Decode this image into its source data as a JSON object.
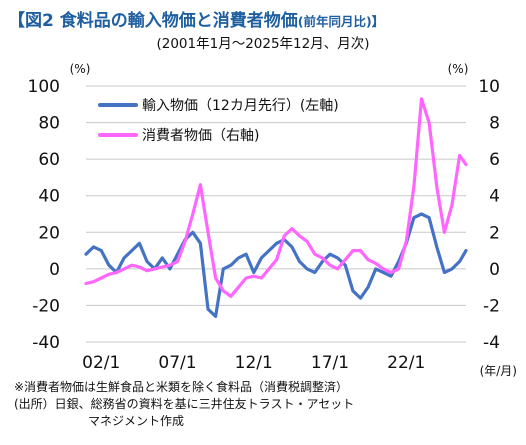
{
  "header": {
    "title_main": "【図2 食料品の輸入物価と消費者物価",
    "title_tail": "(前年同月比)】",
    "subtitle": "(2001年1月～2025年12月、月次)"
  },
  "notes": {
    "note1": "※消費者物価は生鮮食品と米類を除く食料品（消費税調整済）",
    "source1": "(出所）日銀、総務省の資料を基に三井住友トラスト・アセット",
    "source2": "マネジメント作成"
  },
  "colors": {
    "import": "#4472c4",
    "cpi": "#ff66ff",
    "grid": "#c8c8c8",
    "text": "#111111",
    "title": "#1f5fa0"
  },
  "chart_data": {
    "type": "line",
    "left_unit": "(%)",
    "right_unit": "(%)",
    "x_unit": "(年/月)",
    "left_axis": {
      "min": -40,
      "max": 100,
      "step": 20,
      "ticks": [
        "100",
        "80",
        "60",
        "40",
        "20",
        "0",
        "-20",
        "-40"
      ]
    },
    "right_axis": {
      "min": -4,
      "max": 10,
      "step": 2,
      "ticks": [
        "10",
        "8",
        "6",
        "4",
        "2",
        "0",
        "-2",
        "-4"
      ]
    },
    "x_ticks": [
      {
        "label": "02/1",
        "t": 2002.0
      },
      {
        "label": "07/1",
        "t": 2007.0
      },
      {
        "label": "12/1",
        "t": 2012.0
      },
      {
        "label": "17/1",
        "t": 2017.0
      },
      {
        "label": "22/1",
        "t": 2022.0
      }
    ],
    "x_range": [
      "2001-01",
      "2025-12"
    ],
    "series": [
      {
        "name": "輸入物価（12カ月先行）(左軸)",
        "axis": "left",
        "x": [
          "2001-01",
          "2001-07",
          "2002-01",
          "2002-07",
          "2003-01",
          "2003-07",
          "2004-01",
          "2004-07",
          "2005-01",
          "2005-07",
          "2006-01",
          "2006-07",
          "2007-01",
          "2007-07",
          "2008-01",
          "2008-07",
          "2009-01",
          "2009-07",
          "2010-01",
          "2010-07",
          "2011-01",
          "2011-07",
          "2012-01",
          "2012-07",
          "2013-01",
          "2013-07",
          "2014-01",
          "2014-07",
          "2015-01",
          "2015-07",
          "2016-01",
          "2016-07",
          "2017-01",
          "2017-07",
          "2018-01",
          "2018-07",
          "2019-01",
          "2019-07",
          "2020-01",
          "2020-07",
          "2021-01",
          "2021-07",
          "2022-01",
          "2022-07",
          "2023-01",
          "2023-07",
          "2024-01",
          "2024-07",
          "2025-01",
          "2025-07",
          "2025-12"
        ],
        "values": [
          8,
          12,
          10,
          2,
          -2,
          6,
          10,
          14,
          4,
          0,
          6,
          0,
          8,
          16,
          20,
          14,
          -22,
          -26,
          0,
          2,
          6,
          8,
          -2,
          6,
          10,
          14,
          16,
          12,
          4,
          0,
          -2,
          4,
          8,
          6,
          2,
          -12,
          -16,
          -10,
          0,
          -2,
          -4,
          4,
          14,
          28,
          30,
          28,
          12,
          -2,
          0,
          4,
          10
        ]
      },
      {
        "name": "消費者物価（右軸)",
        "axis": "right",
        "x": [
          "2001-01",
          "2001-07",
          "2002-01",
          "2002-07",
          "2003-01",
          "2003-07",
          "2004-01",
          "2004-07",
          "2005-01",
          "2005-07",
          "2006-01",
          "2006-07",
          "2007-01",
          "2007-07",
          "2008-01",
          "2008-07",
          "2009-01",
          "2009-07",
          "2010-01",
          "2010-07",
          "2011-01",
          "2011-07",
          "2012-01",
          "2012-07",
          "2013-01",
          "2013-07",
          "2014-01",
          "2014-07",
          "2015-01",
          "2015-07",
          "2016-01",
          "2016-07",
          "2017-01",
          "2017-07",
          "2018-01",
          "2018-07",
          "2019-01",
          "2019-07",
          "2020-01",
          "2020-07",
          "2021-01",
          "2021-07",
          "2022-01",
          "2022-07",
          "2023-01",
          "2023-07",
          "2024-01",
          "2024-07",
          "2025-01",
          "2025-07",
          "2025-12"
        ],
        "values": [
          -0.8,
          -0.7,
          -0.5,
          -0.3,
          -0.2,
          0.0,
          0.2,
          0.1,
          -0.1,
          0.0,
          0.1,
          0.2,
          0.4,
          1.5,
          3.0,
          4.6,
          2.0,
          -0.5,
          -1.2,
          -1.5,
          -1.0,
          -0.5,
          -0.4,
          -0.5,
          0.0,
          0.5,
          1.8,
          2.2,
          1.8,
          1.5,
          0.8,
          0.6,
          0.2,
          0.0,
          0.5,
          1.0,
          1.0,
          0.5,
          0.3,
          0.0,
          -0.2,
          0.0,
          1.5,
          4.5,
          9.3,
          8.0,
          4.5,
          2.0,
          3.5,
          6.2,
          5.7
        ]
      }
    ]
  }
}
